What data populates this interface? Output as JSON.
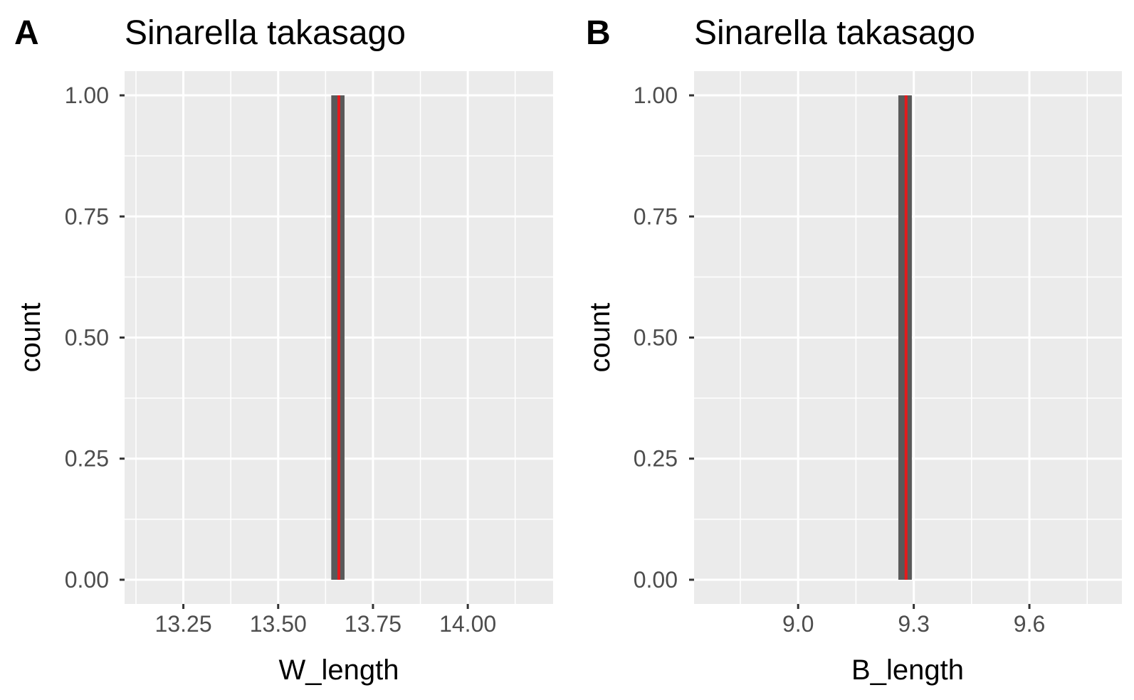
{
  "chart_data": [
    {
      "type": "bar",
      "panel_label": "A",
      "title": "Sinarella takasago",
      "xlabel": "W_length",
      "ylabel": "count",
      "xlim": [
        13.095,
        14.225
      ],
      "ylim": [
        -0.05,
        1.05
      ],
      "x_ticks": [
        13.25,
        13.5,
        13.75,
        14.0
      ],
      "x_tick_labels": [
        "13.25",
        "13.50",
        "13.75",
        "14.00"
      ],
      "y_ticks": [
        0,
        0.25,
        0.5,
        0.75,
        1.0
      ],
      "y_tick_labels": [
        "0.00",
        "0.25",
        "0.50",
        "0.75",
        "1.00"
      ],
      "bars": [
        {
          "xmin": 13.64,
          "xmax": 13.675,
          "count": 1
        }
      ],
      "vline": {
        "x": 13.66,
        "color": "#e41a1c"
      },
      "grid": true,
      "panel_background": "#ebebeb",
      "bar_color": "#595959"
    },
    {
      "type": "bar",
      "panel_label": "B",
      "title": "Sinarella takasago",
      "xlabel": "B_length",
      "ylabel": "count",
      "xlim": [
        8.73,
        9.84
      ],
      "ylim": [
        -0.05,
        1.05
      ],
      "x_ticks": [
        9.0,
        9.3,
        9.6
      ],
      "x_tick_labels": [
        "9.0",
        "9.3",
        "9.6"
      ],
      "y_ticks": [
        0,
        0.25,
        0.5,
        0.75,
        1.0
      ],
      "y_tick_labels": [
        "0.00",
        "0.25",
        "0.50",
        "0.75",
        "1.00"
      ],
      "bars": [
        {
          "xmin": 9.26,
          "xmax": 9.295,
          "count": 1
        }
      ],
      "vline": {
        "x": 9.28,
        "color": "#e41a1c"
      },
      "grid": true,
      "panel_background": "#ebebeb",
      "bar_color": "#595959"
    }
  ]
}
